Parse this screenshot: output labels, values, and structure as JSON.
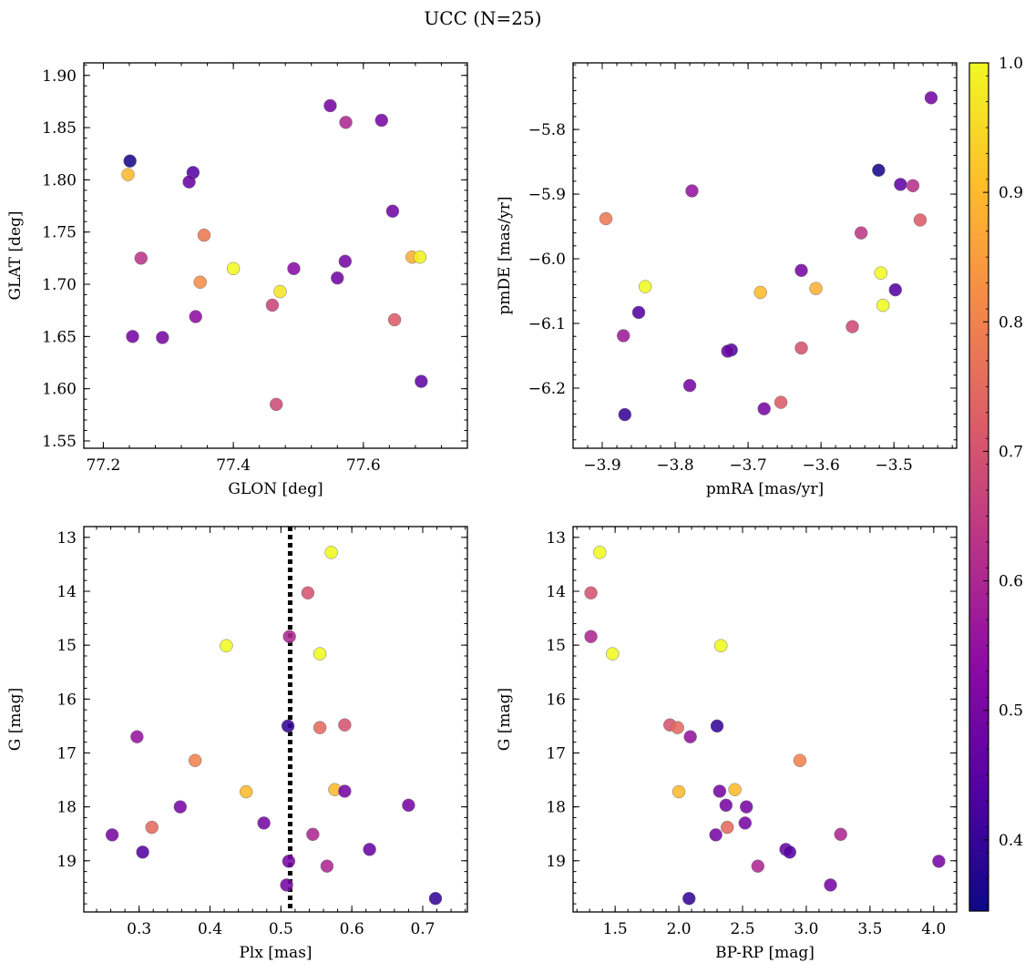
{
  "title": "UCC (N=25)",
  "colormap": {
    "name": "plasma",
    "stops": [
      "#0d0887",
      "#5302a3",
      "#8b0aa5",
      "#b83289",
      "#db5c68",
      "#f48849",
      "#febd2a",
      "#f0f921"
    ],
    "range": [
      0.345,
      1.0
    ],
    "ticks": [
      "0.4",
      "0.5",
      "0.6",
      "0.7",
      "0.8",
      "0.9",
      "1.0"
    ],
    "tick_values": [
      0.4,
      0.5,
      0.6,
      0.7,
      0.8,
      0.9,
      1.0
    ]
  },
  "chart_data": [
    {
      "type": "scatter",
      "name": "glon-glat",
      "xlabel": "GLON [deg]",
      "ylabel": "GLAT [deg]",
      "xlim": [
        77.17,
        77.76
      ],
      "ylim": [
        1.543,
        1.912
      ],
      "invert_y": false,
      "xticks": [
        77.2,
        77.4,
        77.6
      ],
      "xtick_labels": [
        "77.2",
        "77.4",
        "77.6"
      ],
      "yticks": [
        1.55,
        1.6,
        1.65,
        1.7,
        1.75,
        1.8,
        1.85,
        1.9
      ],
      "ytick_labels": [
        "1.55",
        "1.60",
        "1.65",
        "1.70",
        "1.75",
        "1.80",
        "1.85",
        "1.90"
      ],
      "points": [
        {
          "x": 77.241,
          "y": 1.818,
          "c": 0.36
        },
        {
          "x": 77.238,
          "y": 1.805,
          "c": 0.9
        },
        {
          "x": 77.338,
          "y": 1.807,
          "c": 0.44
        },
        {
          "x": 77.332,
          "y": 1.798,
          "c": 0.47
        },
        {
          "x": 77.549,
          "y": 1.871,
          "c": 0.5
        },
        {
          "x": 77.573,
          "y": 1.855,
          "c": 0.6
        },
        {
          "x": 77.628,
          "y": 1.857,
          "c": 0.5
        },
        {
          "x": 77.645,
          "y": 1.77,
          "c": 0.49
        },
        {
          "x": 77.355,
          "y": 1.747,
          "c": 0.78
        },
        {
          "x": 77.258,
          "y": 1.725,
          "c": 0.63
        },
        {
          "x": 77.4,
          "y": 1.715,
          "c": 1.0
        },
        {
          "x": 77.493,
          "y": 1.715,
          "c": 0.53
        },
        {
          "x": 77.572,
          "y": 1.722,
          "c": 0.5
        },
        {
          "x": 77.675,
          "y": 1.726,
          "c": 0.88
        },
        {
          "x": 77.687,
          "y": 1.726,
          "c": 0.99
        },
        {
          "x": 77.349,
          "y": 1.702,
          "c": 0.82
        },
        {
          "x": 77.56,
          "y": 1.706,
          "c": 0.49
        },
        {
          "x": 77.472,
          "y": 1.693,
          "c": 0.97
        },
        {
          "x": 77.46,
          "y": 1.68,
          "c": 0.67
        },
        {
          "x": 77.342,
          "y": 1.669,
          "c": 0.54
        },
        {
          "x": 77.648,
          "y": 1.666,
          "c": 0.72
        },
        {
          "x": 77.245,
          "y": 1.65,
          "c": 0.5
        },
        {
          "x": 77.291,
          "y": 1.649,
          "c": 0.5
        },
        {
          "x": 77.689,
          "y": 1.607,
          "c": 0.46
        },
        {
          "x": 77.466,
          "y": 1.585,
          "c": 0.68
        }
      ]
    },
    {
      "type": "scatter",
      "name": "pmra-pmde",
      "xlabel": "pmRA [mas/yr]",
      "ylabel": "pmDE [mas/yr]",
      "xlim": [
        -3.94,
        -3.414
      ],
      "ylim": [
        -6.293,
        -5.697
      ],
      "invert_y": false,
      "xticks": [
        -3.9,
        -3.8,
        -3.7,
        -3.6,
        -3.5
      ],
      "xtick_labels": [
        "−3.9",
        "−3.8",
        "−3.7",
        "−3.6",
        "−3.5"
      ],
      "yticks": [
        -6.2,
        -6.1,
        -6.0,
        -5.9,
        -5.8
      ],
      "ytick_labels": [
        "−6.2",
        "−6.1",
        "−6.0",
        "−5.9",
        "−5.8"
      ],
      "points": [
        {
          "x": -3.449,
          "y": -5.751,
          "c": 0.5
        },
        {
          "x": -3.521,
          "y": -5.863,
          "c": 0.36
        },
        {
          "x": -3.491,
          "y": -5.885,
          "c": 0.46
        },
        {
          "x": -3.474,
          "y": -5.887,
          "c": 0.62
        },
        {
          "x": -3.777,
          "y": -5.895,
          "c": 0.55
        },
        {
          "x": -3.895,
          "y": -5.938,
          "c": 0.78
        },
        {
          "x": -3.464,
          "y": -5.94,
          "c": 0.72
        },
        {
          "x": -3.545,
          "y": -5.96,
          "c": 0.64
        },
        {
          "x": -3.627,
          "y": -6.018,
          "c": 0.5
        },
        {
          "x": -3.518,
          "y": -6.022,
          "c": 1.0
        },
        {
          "x": -3.841,
          "y": -6.043,
          "c": 1.0
        },
        {
          "x": -3.607,
          "y": -6.046,
          "c": 0.88
        },
        {
          "x": -3.498,
          "y": -6.048,
          "c": 0.44
        },
        {
          "x": -3.683,
          "y": -6.052,
          "c": 0.9
        },
        {
          "x": -3.515,
          "y": -6.072,
          "c": 1.0
        },
        {
          "x": -3.85,
          "y": -6.083,
          "c": 0.44
        },
        {
          "x": -3.557,
          "y": -6.105,
          "c": 0.68
        },
        {
          "x": -3.871,
          "y": -6.119,
          "c": 0.57
        },
        {
          "x": -3.627,
          "y": -6.138,
          "c": 0.7
        },
        {
          "x": -3.723,
          "y": -6.141,
          "c": 0.44
        },
        {
          "x": -3.728,
          "y": -6.143,
          "c": 0.47
        },
        {
          "x": -3.78,
          "y": -6.196,
          "c": 0.5
        },
        {
          "x": -3.655,
          "y": -6.222,
          "c": 0.72
        },
        {
          "x": -3.678,
          "y": -6.232,
          "c": 0.5
        },
        {
          "x": -3.869,
          "y": -6.241,
          "c": 0.4
        }
      ]
    },
    {
      "type": "scatter",
      "name": "plx-g",
      "xlabel": "Plx [mas]",
      "ylabel": "G [mag]",
      "xlim": [
        0.222,
        0.763
      ],
      "ylim": [
        12.8,
        19.95
      ],
      "invert_y": true,
      "xticks": [
        0.3,
        0.4,
        0.5,
        0.6,
        0.7
      ],
      "xtick_labels": [
        "0.3",
        "0.4",
        "0.5",
        "0.6",
        "0.7"
      ],
      "yticks": [
        13,
        14,
        15,
        16,
        17,
        18,
        19
      ],
      "ytick_labels": [
        "13",
        "14",
        "15",
        "16",
        "17",
        "18",
        "19"
      ],
      "vline": {
        "x": 0.513,
        "style": "dotted"
      },
      "points": [
        {
          "x": 0.571,
          "y": 13.28,
          "c": 1.0
        },
        {
          "x": 0.538,
          "y": 14.03,
          "c": 0.7
        },
        {
          "x": 0.423,
          "y": 15.01,
          "c": 1.0
        },
        {
          "x": 0.512,
          "y": 14.84,
          "c": 0.6
        },
        {
          "x": 0.555,
          "y": 15.16,
          "c": 1.0
        },
        {
          "x": 0.51,
          "y": 16.5,
          "c": 0.4
        },
        {
          "x": 0.555,
          "y": 16.53,
          "c": 0.75
        },
        {
          "x": 0.59,
          "y": 16.48,
          "c": 0.7
        },
        {
          "x": 0.297,
          "y": 16.7,
          "c": 0.55
        },
        {
          "x": 0.379,
          "y": 17.14,
          "c": 0.8
        },
        {
          "x": 0.451,
          "y": 17.72,
          "c": 0.9
        },
        {
          "x": 0.576,
          "y": 17.68,
          "c": 0.9
        },
        {
          "x": 0.59,
          "y": 17.71,
          "c": 0.5
        },
        {
          "x": 0.358,
          "y": 18.0,
          "c": 0.5
        },
        {
          "x": 0.68,
          "y": 17.97,
          "c": 0.5
        },
        {
          "x": 0.318,
          "y": 18.38,
          "c": 0.75
        },
        {
          "x": 0.476,
          "y": 18.3,
          "c": 0.5
        },
        {
          "x": 0.262,
          "y": 18.52,
          "c": 0.5
        },
        {
          "x": 0.545,
          "y": 18.51,
          "c": 0.6
        },
        {
          "x": 0.305,
          "y": 18.84,
          "c": 0.44
        },
        {
          "x": 0.625,
          "y": 18.79,
          "c": 0.47
        },
        {
          "x": 0.511,
          "y": 19.01,
          "c": 0.5
        },
        {
          "x": 0.565,
          "y": 19.1,
          "c": 0.6
        },
        {
          "x": 0.508,
          "y": 19.45,
          "c": 0.5
        },
        {
          "x": 0.718,
          "y": 19.7,
          "c": 0.4
        }
      ]
    },
    {
      "type": "scatter",
      "name": "bprp-g",
      "xlabel": "BP-RP [mag]",
      "ylabel": "G [mag]",
      "xlim": [
        1.17,
        4.18
      ],
      "ylim": [
        12.8,
        19.95
      ],
      "invert_y": true,
      "xticks": [
        1.5,
        2.0,
        2.5,
        3.0,
        3.5,
        4.0
      ],
      "xtick_labels": [
        "1.5",
        "2.0",
        "2.5",
        "3.0",
        "3.5",
        "4.0"
      ],
      "yticks": [
        13,
        14,
        15,
        16,
        17,
        18,
        19
      ],
      "ytick_labels": [
        "13",
        "14",
        "15",
        "16",
        "17",
        "18",
        "19"
      ],
      "points": [
        {
          "x": 1.38,
          "y": 13.28,
          "c": 1.0
        },
        {
          "x": 1.31,
          "y": 14.03,
          "c": 0.7
        },
        {
          "x": 1.31,
          "y": 14.84,
          "c": 0.6
        },
        {
          "x": 1.48,
          "y": 15.16,
          "c": 1.0
        },
        {
          "x": 2.33,
          "y": 15.01,
          "c": 1.0
        },
        {
          "x": 1.93,
          "y": 16.48,
          "c": 0.7
        },
        {
          "x": 1.99,
          "y": 16.53,
          "c": 0.75
        },
        {
          "x": 2.3,
          "y": 16.5,
          "c": 0.4
        },
        {
          "x": 2.09,
          "y": 16.7,
          "c": 0.55
        },
        {
          "x": 2.95,
          "y": 17.14,
          "c": 0.8
        },
        {
          "x": 2.0,
          "y": 17.72,
          "c": 0.9
        },
        {
          "x": 2.44,
          "y": 17.68,
          "c": 0.9
        },
        {
          "x": 2.32,
          "y": 17.71,
          "c": 0.5
        },
        {
          "x": 2.37,
          "y": 17.97,
          "c": 0.5
        },
        {
          "x": 2.53,
          "y": 18.0,
          "c": 0.5
        },
        {
          "x": 2.38,
          "y": 18.38,
          "c": 0.75
        },
        {
          "x": 2.52,
          "y": 18.3,
          "c": 0.5
        },
        {
          "x": 2.29,
          "y": 18.52,
          "c": 0.5
        },
        {
          "x": 3.27,
          "y": 18.51,
          "c": 0.6
        },
        {
          "x": 2.84,
          "y": 18.79,
          "c": 0.47
        },
        {
          "x": 2.87,
          "y": 18.84,
          "c": 0.44
        },
        {
          "x": 4.04,
          "y": 19.01,
          "c": 0.5
        },
        {
          "x": 2.62,
          "y": 19.1,
          "c": 0.6
        },
        {
          "x": 3.19,
          "y": 19.45,
          "c": 0.5
        },
        {
          "x": 2.08,
          "y": 19.7,
          "c": 0.4
        }
      ]
    }
  ]
}
